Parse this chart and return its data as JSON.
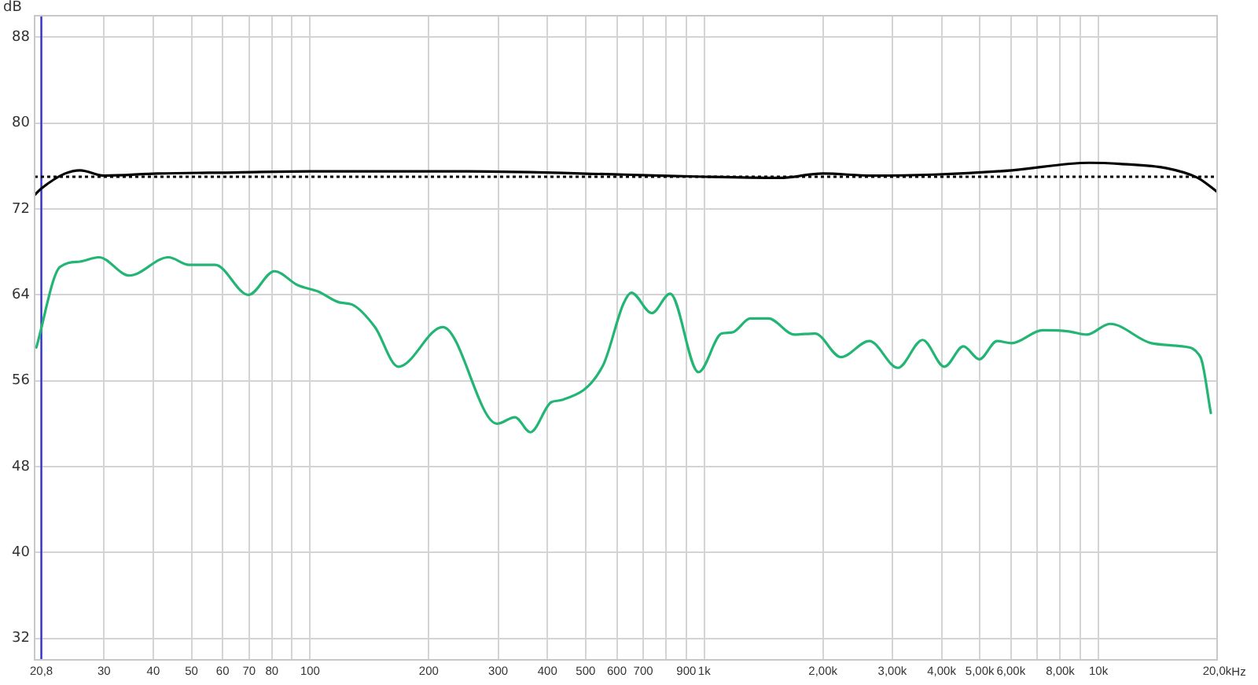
{
  "chart_data": {
    "type": "line",
    "ylabel": "dB",
    "log": "x",
    "grid": true,
    "legend": false,
    "marker": "none",
    "xlim": [
      20,
      20000
    ],
    "ylim": [
      30,
      90
    ],
    "xticks": [
      {
        "value": 20.8,
        "label": "20,8"
      },
      30,
      40,
      50,
      60,
      70,
      80,
      {
        "value": 90,
        "label": null
      },
      100,
      200,
      300,
      400,
      500,
      600,
      700,
      {
        "value": 800,
        "label": null
      },
      900,
      {
        "value": 1000,
        "label": "1k"
      },
      {
        "value": 2000,
        "label": "2,00k"
      },
      {
        "value": 3000,
        "label": "3,00k"
      },
      {
        "value": 4000,
        "label": "4,00k"
      },
      {
        "value": 5000,
        "label": "5,00k"
      },
      {
        "value": 6000,
        "label": "6,00k"
      },
      {
        "value": 7000,
        "label": null
      },
      {
        "value": 8000,
        "label": "8,00k"
      },
      {
        "value": 9000,
        "label": null
      },
      {
        "value": 10000,
        "label": "10k"
      },
      {
        "value": 20000,
        "label": "20,0k"
      }
    ],
    "xlabel": "Hz",
    "yticks": [
      32,
      40,
      48,
      56,
      64,
      72,
      80,
      88
    ],
    "ref_lines": [
      {
        "axis": "x",
        "value": 20.8,
        "color": "#3333cc"
      },
      {
        "axis": "y",
        "value": 75,
        "color": "#000000",
        "line_style": "dotted"
      }
    ],
    "series": [
      {
        "color": "#000000",
        "x": [
          20,
          20.8,
          23.9,
          26.1,
          30,
          41,
          65,
          100,
          252,
          624,
          1000,
          1550,
          2000,
          2660,
          3830,
          6030,
          9470,
          11350,
          14900,
          17860,
          20000
        ],
        "values": [
          73.3,
          73.9,
          75.3,
          75.6,
          75.1,
          75.3,
          75.4,
          75.5,
          75.5,
          75.2,
          75.0,
          74.9,
          75.3,
          75.1,
          75.2,
          75.6,
          76.3,
          76.2,
          75.8,
          74.9,
          73.6
        ]
      },
      {
        "color": "#22b573",
        "x": [
          20.2,
          23.2,
          26.1,
          29.1,
          34.8,
          43.7,
          49.3,
          57.4,
          69.8,
          81.2,
          93,
          105,
          118.5,
          127.7,
          146,
          167.5,
          217,
          298,
          331,
          362,
          409,
          434,
          553,
          624,
          653,
          736,
          819,
          967,
          1107,
          1177,
          1309,
          1454,
          1692,
          1909,
          2221,
          2622,
          3098,
          3581,
          4066,
          4543,
          4988,
          5531,
          6020,
          7216,
          8397,
          9333,
          10700,
          13620,
          16320,
          18150,
          19280
        ],
        "values": [
          59.1,
          66.6,
          67.1,
          67.5,
          65.8,
          67.5,
          66.8,
          66.8,
          64.0,
          66.2,
          64.9,
          64.3,
          63.3,
          63.1,
          61.0,
          57.3,
          61.0,
          52.0,
          52.6,
          51.2,
          54.0,
          54.2,
          57.4,
          63.2,
          64.2,
          62.3,
          64.1,
          56.8,
          60.4,
          60.5,
          61.8,
          61.8,
          60.3,
          60.4,
          58.2,
          59.7,
          57.2,
          59.8,
          57.3,
          59.2,
          58.0,
          59.7,
          59.5,
          60.7,
          60.6,
          60.3,
          61.3,
          59.5,
          59.2,
          58.2,
          53.0
        ]
      }
    ]
  }
}
